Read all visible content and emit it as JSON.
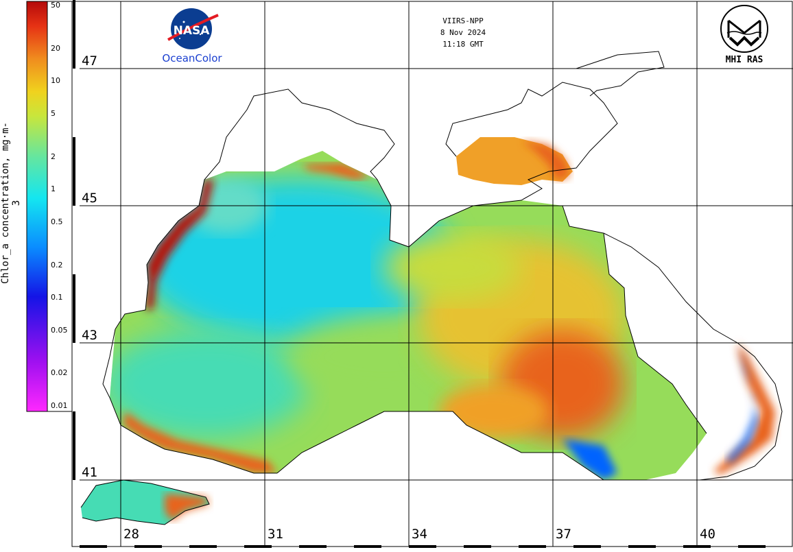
{
  "header": {
    "sensor": "VIIRS-NPP",
    "date": "8 Nov 2024",
    "time": "11:18 GMT"
  },
  "logos": {
    "nasa_text": "NASA",
    "oceancolor_text": "OceanColor",
    "mhi_text": "MHI RAS"
  },
  "colorbar": {
    "title": "Chlor_a concentration, mg·m-3",
    "ticks": [
      "50",
      "20",
      "10",
      "5",
      "2",
      "1",
      "0.5",
      "0.2",
      "0.1",
      "0.05",
      "0.02",
      "0.01"
    ],
    "scale": "log"
  },
  "grid": {
    "latitudes": [
      "47",
      "45",
      "43",
      "41"
    ],
    "longitudes": [
      "28",
      "31",
      "34",
      "37",
      "40"
    ]
  },
  "colors": {
    "very_high": "#b4140a",
    "high": "#e8641e",
    "elevated": "#f0a028",
    "medium": "#e6d232",
    "mid": "#96dc5a",
    "low": "#46dcb4",
    "very_low": "#1ed2e6",
    "minimum": "#0064ff",
    "land": "#ffffff",
    "coastline": "#000000"
  }
}
